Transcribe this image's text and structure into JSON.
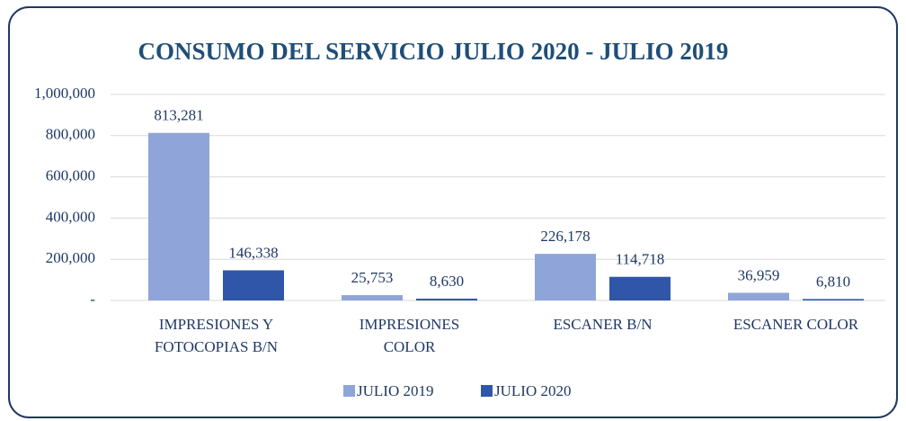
{
  "chart_data": {
    "type": "bar",
    "title": "CONSUMO DEL SERVICIO JULIO 2020 - JULIO 2019",
    "categories": [
      "IMPRESIONES Y FOTOCOPIAS B/N",
      "IMPRESIONES COLOR",
      "ESCANER B/N",
      "ESCANER COLOR"
    ],
    "series": [
      {
        "name": "JULIO 2019",
        "color": "#8fa5d9",
        "values": [
          813281,
          25753,
          226178,
          36959
        ],
        "value_labels": [
          "813,281",
          "25,753",
          "226,178",
          "36,959"
        ]
      },
      {
        "name": "JULIO 2020",
        "color": "#2f56a8",
        "values": [
          146338,
          8630,
          114718,
          6810
        ],
        "value_labels": [
          "146,338",
          "8,630",
          "114,718",
          "6,810"
        ]
      }
    ],
    "ylim": [
      0,
      1000000
    ],
    "yticks": [
      {
        "value": 0,
        "label": "-"
      },
      {
        "value": 200000,
        "label": "200,000"
      },
      {
        "value": 400000,
        "label": "400,000"
      },
      {
        "value": 600000,
        "label": "600,000"
      },
      {
        "value": 800000,
        "label": "800,000"
      },
      {
        "value": 1000000,
        "label": "1,000,000"
      }
    ],
    "grid": true,
    "legend": "bottom"
  }
}
